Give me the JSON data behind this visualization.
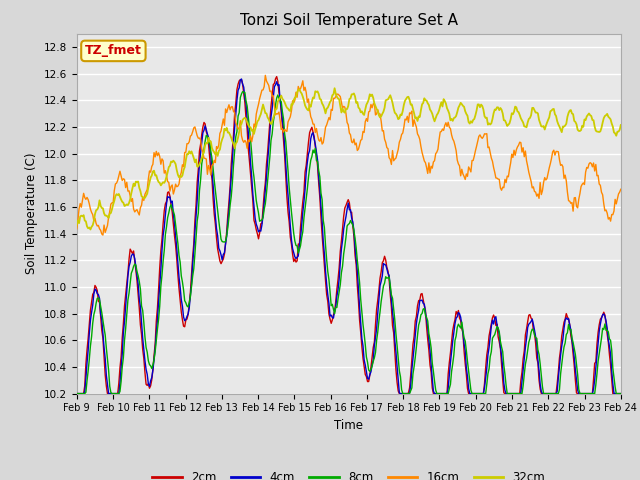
{
  "title": "Tonzi Soil Temperature Set A",
  "xlabel": "Time",
  "ylabel": "Soil Temperature (C)",
  "annotation": "TZ_fmet",
  "annotation_color": "#cc0000",
  "annotation_bg": "#ffffcc",
  "annotation_border": "#cc9900",
  "ylim": [
    10.2,
    12.9
  ],
  "x_labels": [
    "Feb 9",
    "Feb 10",
    "Feb 11",
    "Feb 12",
    "Feb 13",
    "Feb 14",
    "Feb 15",
    "Feb 16",
    "Feb 17",
    "Feb 18",
    "Feb 19",
    "Feb 20",
    "Feb 21",
    "Feb 22",
    "Feb 23",
    "Feb 24"
  ],
  "series_colors": {
    "2cm": "#cc0000",
    "4cm": "#0000cc",
    "8cm": "#00aa00",
    "16cm": "#ff8800",
    "32cm": "#cccc00"
  },
  "background_color": "#d8d8d8",
  "plot_bg": "#e8e8e8",
  "grid_color": "#ffffff",
  "n_points": 480
}
